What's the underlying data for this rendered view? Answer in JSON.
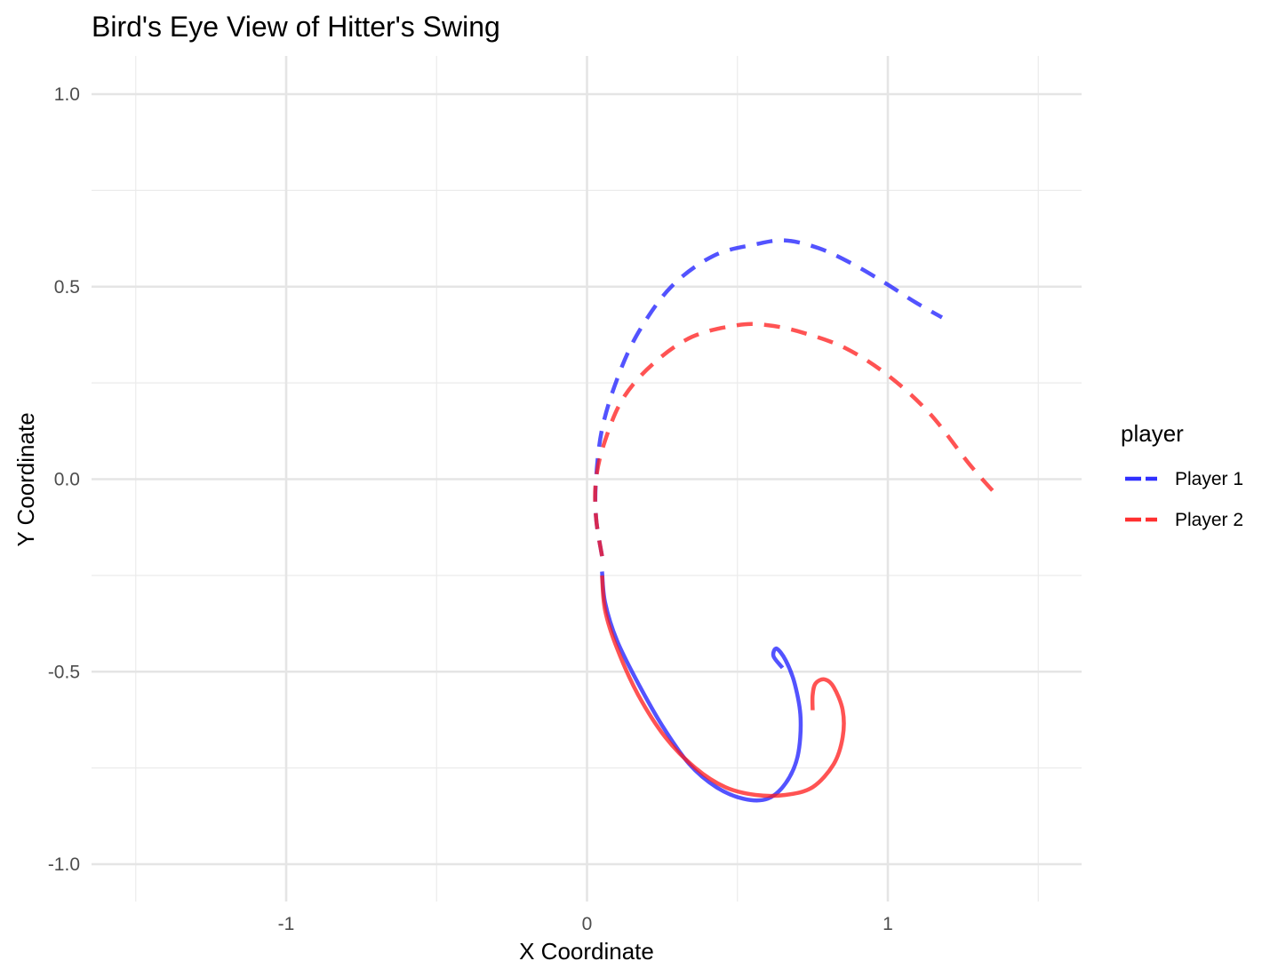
{
  "chart_data": {
    "type": "line",
    "title": "Bird's Eye View of Hitter's Swing",
    "xlabel": "X Coordinate",
    "ylabel": "Y Coordinate",
    "xlim": [
      -1.5,
      1.5
    ],
    "ylim": [
      -1.0,
      1.0
    ],
    "x_ticks": [
      -1,
      0,
      1
    ],
    "x_tick_labels": [
      "-1",
      "0",
      "1"
    ],
    "y_ticks": [
      -1.0,
      -0.5,
      0.0,
      0.5,
      1.0
    ],
    "y_tick_labels": [
      "-1.0",
      "-0.5",
      "0.0",
      "0.5",
      "1.0"
    ],
    "grid": true,
    "legend": {
      "title": "player",
      "position": "right"
    },
    "series": [
      {
        "name": "Player 1",
        "color": "#1a1aff",
        "segments": [
          {
            "style": "solid",
            "x": [
              0.65,
              0.62,
              0.63,
              0.66,
              0.69,
              0.71,
              0.7,
              0.66,
              0.6,
              0.52,
              0.43,
              0.34,
              0.25,
              0.17,
              0.1,
              0.06,
              0.05
            ],
            "y": [
              -0.49,
              -0.46,
              -0.44,
              -0.47,
              -0.53,
              -0.62,
              -0.72,
              -0.79,
              -0.83,
              -0.83,
              -0.8,
              -0.74,
              -0.64,
              -0.53,
              -0.42,
              -0.32,
              -0.24
            ]
          },
          {
            "style": "dashed",
            "x": [
              0.05,
              0.03,
              0.03,
              0.05,
              0.1,
              0.17,
              0.28,
              0.42,
              0.56,
              0.66,
              0.77,
              0.88,
              0.99,
              1.09,
              1.18
            ],
            "y": [
              -0.2,
              -0.1,
              0.0,
              0.13,
              0.26,
              0.38,
              0.5,
              0.58,
              0.61,
              0.62,
              0.6,
              0.56,
              0.51,
              0.46,
              0.42
            ]
          }
        ]
      },
      {
        "name": "Player 2",
        "color": "#ff1a1a",
        "segments": [
          {
            "style": "solid",
            "x": [
              0.75,
              0.75,
              0.76,
              0.79,
              0.82,
              0.85,
              0.85,
              0.82,
              0.75,
              0.66,
              0.56,
              0.46,
              0.36,
              0.26,
              0.17,
              0.1,
              0.06,
              0.05
            ],
            "y": [
              -0.6,
              -0.56,
              -0.53,
              -0.52,
              -0.54,
              -0.6,
              -0.67,
              -0.74,
              -0.8,
              -0.82,
              -0.82,
              -0.8,
              -0.75,
              -0.67,
              -0.56,
              -0.44,
              -0.34,
              -0.25
            ]
          },
          {
            "style": "dashed",
            "x": [
              0.05,
              0.03,
              0.03,
              0.06,
              0.12,
              0.22,
              0.35,
              0.5,
              0.6,
              0.72,
              0.86,
              1.0,
              1.14,
              1.27,
              1.36
            ],
            "y": [
              -0.2,
              -0.1,
              0.0,
              0.1,
              0.21,
              0.3,
              0.37,
              0.4,
              0.4,
              0.38,
              0.34,
              0.27,
              0.17,
              0.04,
              -0.04
            ]
          }
        ]
      }
    ]
  }
}
